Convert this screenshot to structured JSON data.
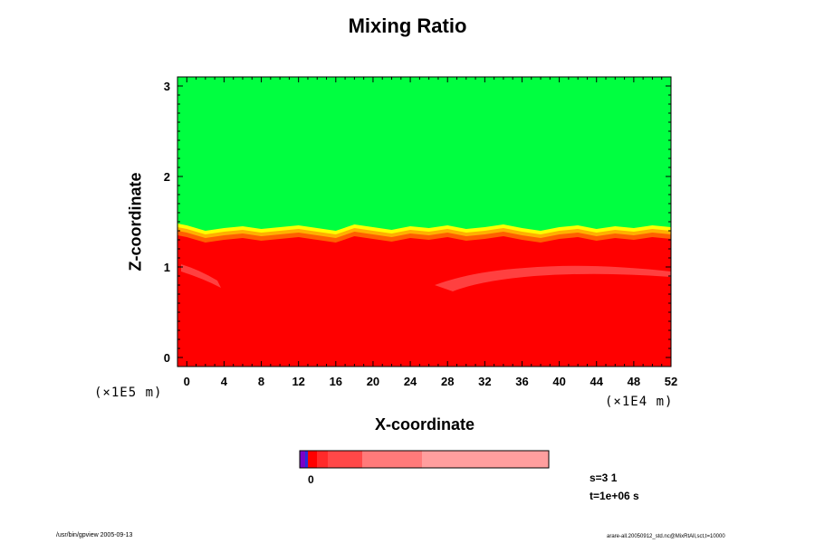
{
  "chart_data": {
    "type": "heatmap",
    "title": "Mixing Ratio",
    "xlabel": "X-coordinate",
    "ylabel": "Z-coordinate",
    "x_unit": "(×1E4 m)",
    "y_unit": "(×1E5 m)",
    "xlim": [
      -1,
      52
    ],
    "ylim": [
      -0.1,
      3.1
    ],
    "x_ticks": [
      "0",
      "4",
      "8",
      "12",
      "16",
      "20",
      "24",
      "28",
      "32",
      "36",
      "40",
      "44",
      "48",
      "52"
    ],
    "y_ticks": [
      "0",
      "1",
      "2",
      "3"
    ],
    "interface_height": [
      [
        -1,
        1.35
      ],
      [
        0,
        1.33
      ],
      [
        2,
        1.27
      ],
      [
        4,
        1.3
      ],
      [
        6,
        1.32
      ],
      [
        8,
        1.29
      ],
      [
        10,
        1.31
      ],
      [
        12,
        1.33
      ],
      [
        14,
        1.3
      ],
      [
        16,
        1.27
      ],
      [
        18,
        1.34
      ],
      [
        20,
        1.31
      ],
      [
        22,
        1.28
      ],
      [
        24,
        1.32
      ],
      [
        26,
        1.3
      ],
      [
        28,
        1.33
      ],
      [
        30,
        1.29
      ],
      [
        32,
        1.31
      ],
      [
        34,
        1.34
      ],
      [
        36,
        1.3
      ],
      [
        38,
        1.27
      ],
      [
        40,
        1.31
      ],
      [
        42,
        1.33
      ],
      [
        44,
        1.29
      ],
      [
        46,
        1.32
      ],
      [
        48,
        1.3
      ],
      [
        50,
        1.33
      ],
      [
        52,
        1.31
      ]
    ],
    "region_colors": {
      "upper": "#00ff40",
      "lower": "#ff0000",
      "transition_1": "#ffff00",
      "transition_2": "#ffb000",
      "transition_3": "#ff6000",
      "light_patch": "#ff4040"
    },
    "colorbar": {
      "segments": [
        {
          "color": "#7a00c8",
          "width": 6
        },
        {
          "color": "#2a2ad8",
          "width": 3
        },
        {
          "color": "#ff0000",
          "width": 10
        },
        {
          "color": "#ff2a2a",
          "width": 12
        },
        {
          "color": "#ff4848",
          "width": 38
        },
        {
          "color": "#ff7a7a",
          "width": 66
        },
        {
          "color": "#ff9e9e",
          "width": 140
        }
      ],
      "label": "0"
    },
    "grid": false
  },
  "status": {
    "line1": "s=3 1",
    "line2": "t=1e+06 s"
  },
  "footer": {
    "left": "/usr/bin/gpview 2005-09-13",
    "right": "arare-all.20050912_std.nc@MixRtAll,sct,t=10000"
  }
}
